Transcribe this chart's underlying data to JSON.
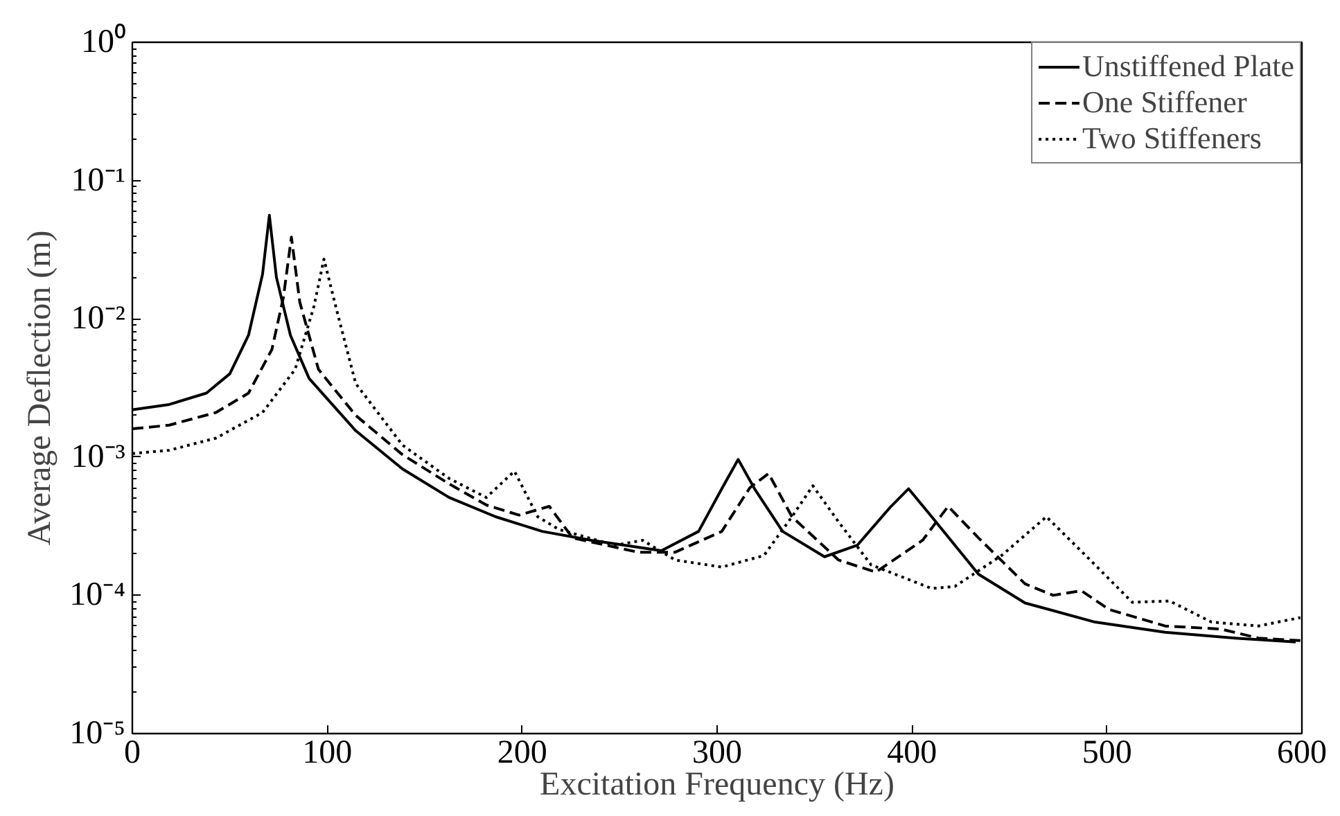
{
  "chart_data": {
    "type": "line",
    "xlabel": "Excitation Frequency (Hz)",
    "ylabel": "Average Deflection (m)",
    "log": "y",
    "grid": false,
    "legend": "top right",
    "xlim": [
      0,
      600
    ],
    "xticks": [
      0,
      100,
      200,
      300,
      400,
      500,
      600
    ],
    "ylim": [
      1e-05,
      1
    ],
    "yticks": [
      {
        "value": 1e-05,
        "label": "10⁻⁵"
      },
      {
        "value": 0.0001,
        "label": "10⁻⁴"
      },
      {
        "value": 0.001,
        "label": "10⁻³"
      },
      {
        "value": 0.01,
        "label": "10⁻²"
      },
      {
        "value": 0.1,
        "label": "10⁻¹"
      },
      {
        "value": 1,
        "label": "10⁰"
      }
    ],
    "series": [
      {
        "name": "Unstiffened Plate",
        "color": "#000000",
        "line_style": "solid",
        "x": [
          0,
          18.9,
          38,
          50,
          59.6,
          66.8,
          70.3,
          73.9,
          81.1,
          90.7,
          114.6,
          138.6,
          162.5,
          186.4,
          210.3,
          235.5,
          271.4,
          290.5,
          302.4,
          310.8,
          319.2,
          333.6,
          355.1,
          371.9,
          388.6,
          398.2,
          410.1,
          434.1,
          458,
          493.9,
          529.8,
          565.7,
          596.8
        ],
        "values": [
          0.0022,
          0.0024,
          0.0029,
          0.004,
          0.0076,
          0.021,
          0.056,
          0.02,
          0.0076,
          0.0037,
          0.00155,
          0.00082,
          0.00051,
          0.00037,
          0.00029,
          0.00025,
          0.00021,
          0.00029,
          0.00059,
          0.00096,
          0.00059,
          0.00029,
          0.00019,
          0.00023,
          0.00043,
          0.00059,
          0.00037,
          0.000142,
          8.8e-05,
          6.4e-05,
          5.4e-05,
          4.9e-05,
          4.6e-05
        ]
      },
      {
        "name": "One Stiffener",
        "color": "#000000",
        "line_style": "dashed",
        "x": [
          0,
          18.9,
          42.9,
          59.6,
          71.6,
          77.5,
          81.6,
          85.9,
          95.5,
          114.6,
          138.6,
          162.5,
          181.6,
          198.4,
          213.9,
          225.9,
          259.4,
          278.5,
          302.4,
          316.8,
          326.4,
          338.4,
          362.3,
          381.4,
          405.4,
          418.5,
          434.1,
          458,
          472.4,
          486.8,
          501.1,
          529.8,
          558.5,
          577.7,
          599.2
        ],
        "values": [
          0.0016,
          0.0017,
          0.0021,
          0.0029,
          0.006,
          0.0143,
          0.039,
          0.0132,
          0.0043,
          0.002,
          0.00104,
          0.00064,
          0.00045,
          0.00038,
          0.00044,
          0.00026,
          0.000205,
          0.000205,
          0.00029,
          0.0006,
          0.00076,
          0.00037,
          0.00018,
          0.000147,
          0.00025,
          0.00044,
          0.00026,
          0.000121,
          0.0001,
          0.000108,
          7.9e-05,
          6e-05,
          5.7e-05,
          4.9e-05,
          4.7e-05
        ]
      },
      {
        "name": "Two Stiffeners",
        "color": "#000000",
        "line_style": "dotted",
        "x": [
          0,
          18.9,
          42.9,
          66.8,
          83.5,
          93.1,
          98.3,
          105,
          114.6,
          138.6,
          162.5,
          181.6,
          196,
          208,
          218.7,
          247.4,
          261.8,
          278.5,
          302.4,
          324,
          338.4,
          349.1,
          362.3,
          379,
          410.1,
          422,
          445.9,
          468.9,
          489.1,
          513,
          532.1,
          553.7,
          577.7,
          599.2
        ],
        "values": [
          0.00106,
          0.00112,
          0.00137,
          0.0021,
          0.0043,
          0.0122,
          0.027,
          0.0113,
          0.0034,
          0.00122,
          0.0007,
          0.00051,
          0.00079,
          0.00037,
          0.0003,
          0.00023,
          0.00025,
          0.00018,
          0.00016,
          0.000194,
          0.00037,
          0.00062,
          0.00034,
          0.000166,
          0.000112,
          0.000116,
          0.000194,
          0.00037,
          0.000194,
          8.9e-05,
          9.1e-05,
          6.4e-05,
          6e-05,
          6.9e-05
        ]
      }
    ]
  }
}
